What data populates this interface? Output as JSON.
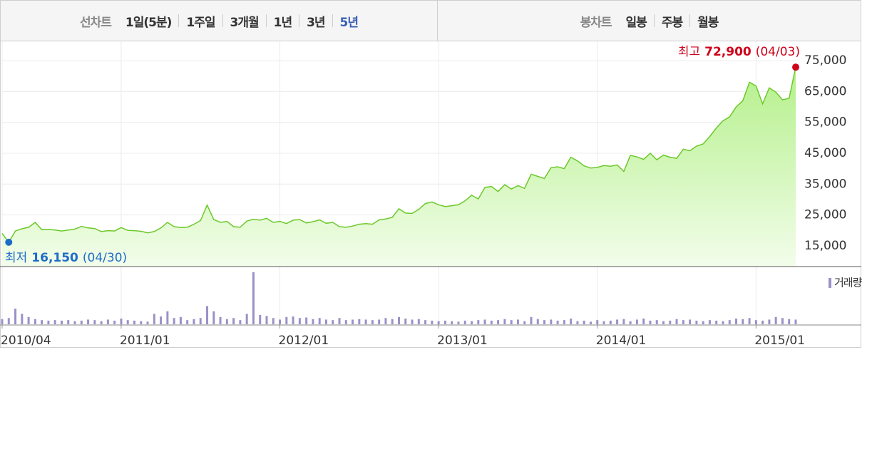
{
  "tabs": {
    "line_label": "선차트",
    "line_periods": [
      "1일(5분)",
      "1주일",
      "3개월",
      "1년",
      "3년",
      "5년"
    ],
    "candle_label": "봉차트",
    "candle_periods": [
      "일봉",
      "주봉",
      "월봉"
    ]
  },
  "chart_data": {
    "type": "line",
    "categories": [
      "2010/04",
      null,
      null,
      null,
      null,
      null,
      null,
      null,
      null,
      null,
      null,
      null,
      null,
      null,
      null,
      null,
      null,
      null,
      "2011/01",
      null,
      null,
      null,
      null,
      null,
      null,
      null,
      null,
      null,
      null,
      null,
      null,
      null,
      null,
      null,
      null,
      null,
      null,
      null,
      null,
      null,
      null,
      null,
      "2012/01",
      null,
      null,
      null,
      null,
      null,
      null,
      null,
      null,
      null,
      null,
      null,
      null,
      null,
      null,
      null,
      null,
      null,
      null,
      null,
      null,
      null,
      null,
      null,
      "2013/01",
      null,
      null,
      null,
      null,
      null,
      null,
      null,
      null,
      null,
      null,
      null,
      null,
      null,
      null,
      null,
      null,
      null,
      null,
      null,
      null,
      null,
      null,
      null,
      "2014/01",
      null,
      null,
      null,
      null,
      null,
      null,
      null,
      null,
      null,
      null,
      null,
      null,
      null,
      null,
      null,
      null,
      null,
      null,
      null,
      null,
      null,
      null,
      null,
      "2015/01",
      null,
      null,
      null,
      null,
      null,
      null
    ],
    "series": [
      {
        "color": "#6cc92a",
        "values": [
          19000,
          16150,
          19800,
          20500,
          21000,
          22600,
          20200,
          20300,
          20100,
          19800,
          20100,
          20400,
          21300,
          20800,
          20600,
          19600,
          19900,
          19800,
          20900,
          20000,
          19900,
          19700,
          19200,
          19600,
          20800,
          22600,
          21200,
          20900,
          21000,
          22000,
          23200,
          28200,
          23500,
          22600,
          22900,
          21200,
          21000,
          23000,
          23600,
          23300,
          23900,
          22600,
          22900,
          22200,
          23300,
          23500,
          22400,
          22800,
          23400,
          22300,
          22600,
          21200,
          21000,
          21400,
          22000,
          22200,
          22000,
          23400,
          23700,
          24200,
          27000,
          25600,
          25500,
          26800,
          28700,
          29200,
          28300,
          27700,
          28000,
          28300,
          29600,
          31400,
          30200,
          33900,
          34200,
          32600,
          34800,
          33400,
          34500,
          33600,
          38200,
          37500,
          36800,
          40300,
          40600,
          40000,
          43700,
          42500,
          40900,
          40200,
          40400,
          41000,
          40800,
          41200,
          39100,
          44300,
          43800,
          43000,
          45000,
          42900,
          44400,
          43700,
          43300,
          46300,
          45800,
          47300,
          48000,
          50400,
          53200,
          55500,
          56800,
          60000,
          62000,
          68000,
          66800,
          61000,
          66200,
          64800,
          62300,
          62800,
          72900
        ]
      }
    ],
    "ylim": [
      8500,
      80800
    ],
    "yticks": [
      {
        "value": 15000,
        "label": "15,000"
      },
      {
        "value": 25000,
        "label": "25,000"
      },
      {
        "value": 35000,
        "label": "35,000"
      },
      {
        "value": 45000,
        "label": "45,000"
      },
      {
        "value": 55000,
        "label": "55,000"
      },
      {
        "value": 65000,
        "label": "65,000"
      },
      {
        "value": 75000,
        "label": "75,000"
      }
    ],
    "grid": true,
    "max": {
      "label": "최고",
      "value": 72900,
      "value_label": "72,900",
      "date": "(04/03)",
      "color": "#d0021b"
    },
    "min": {
      "label": "최저",
      "value": 16150,
      "value_label": "16,150",
      "date": "(04/30)",
      "color": "#1e6cc8"
    },
    "volume": {
      "name": "거래량",
      "color": "#9b91c8",
      "ylim": [
        0,
        100
      ],
      "values": [
        10,
        12,
        30,
        20,
        14,
        10,
        8,
        7,
        8,
        7,
        8,
        6,
        7,
        9,
        8,
        6,
        9,
        7,
        11,
        8,
        7,
        6,
        5,
        20,
        15,
        25,
        12,
        14,
        8,
        10,
        12,
        35,
        25,
        14,
        10,
        12,
        8,
        20,
        100,
        18,
        16,
        12,
        9,
        14,
        15,
        12,
        13,
        10,
        12,
        9,
        8,
        12,
        8,
        9,
        10,
        9,
        8,
        9,
        12,
        10,
        14,
        11,
        9,
        10,
        8,
        7,
        6,
        7,
        6,
        5,
        7,
        6,
        8,
        9,
        7,
        8,
        10,
        8,
        9,
        6,
        14,
        10,
        8,
        9,
        7,
        8,
        11,
        6,
        7,
        5,
        8,
        6,
        7,
        9,
        10,
        6,
        9,
        11,
        7,
        8,
        6,
        7,
        10,
        8,
        9,
        7,
        6,
        8,
        7,
        6,
        8,
        11,
        10,
        12,
        8,
        7,
        9,
        14,
        12,
        10,
        9
      ]
    }
  }
}
